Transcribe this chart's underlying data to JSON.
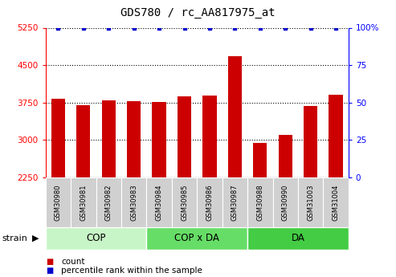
{
  "title": "GDS780 / rc_AA817975_at",
  "samples": [
    "GSM30980",
    "GSM30981",
    "GSM30982",
    "GSM30983",
    "GSM30984",
    "GSM30985",
    "GSM30986",
    "GSM30987",
    "GSM30988",
    "GSM30990",
    "GSM31003",
    "GSM31004"
  ],
  "counts": [
    3820,
    3700,
    3790,
    3770,
    3760,
    3870,
    3890,
    4680,
    2940,
    3100,
    3680,
    3900
  ],
  "groups": [
    {
      "label": "COP",
      "start": 0,
      "end": 3,
      "color": "#aaffaa"
    },
    {
      "label": "COP x DA",
      "start": 4,
      "end": 7,
      "color": "#44cc44"
    },
    {
      "label": "DA",
      "start": 8,
      "end": 11,
      "color": "#44cc44"
    }
  ],
  "group_colors": [
    "#c8f5c8",
    "#66dd66",
    "#44cc44"
  ],
  "ylim": [
    2250,
    5250
  ],
  "yticks": [
    2250,
    3000,
    3750,
    4500,
    5250
  ],
  "ytick_labels": [
    "2250",
    "3000",
    "3750",
    "4500",
    "5250"
  ],
  "y2ticks": [
    0,
    25,
    50,
    75,
    100
  ],
  "y2tick_labels": [
    "0",
    "25",
    "50",
    "75",
    "100%"
  ],
  "bar_color": "#cc0000",
  "dot_color": "#0000cc",
  "cell_color": "#d0d0d0",
  "label_count": "count",
  "label_pct": "percentile rank within the sample",
  "strain_label": "strain"
}
